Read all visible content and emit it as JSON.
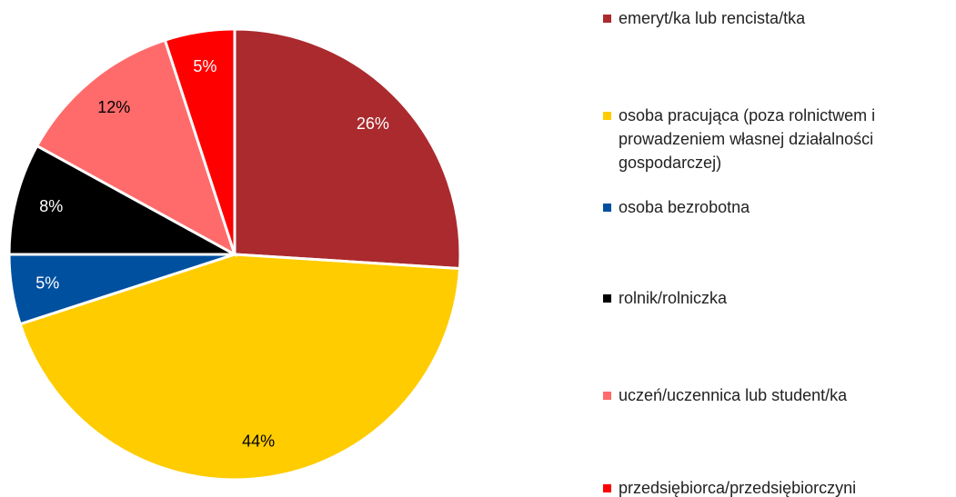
{
  "chart_data": {
    "type": "pie",
    "categories": [
      "emeryt/ka lub rencista/tka",
      "osoba pracująca (poza rolnictwem i prowadzeniem własnej działalności gospodarczej)",
      "osoba bezrobotna",
      "rolnik/rolniczka",
      "uczeń/uczennica lub student/ka",
      "przedsiębiorca/przedsiębiorczyni"
    ],
    "values": [
      26,
      44,
      5,
      8,
      12,
      5
    ],
    "colors": [
      "#ab2a2e",
      "#ffcc00",
      "#0050a0",
      "#000000",
      "#ff6b6b",
      "#ff0000"
    ],
    "legend": "right"
  }
}
